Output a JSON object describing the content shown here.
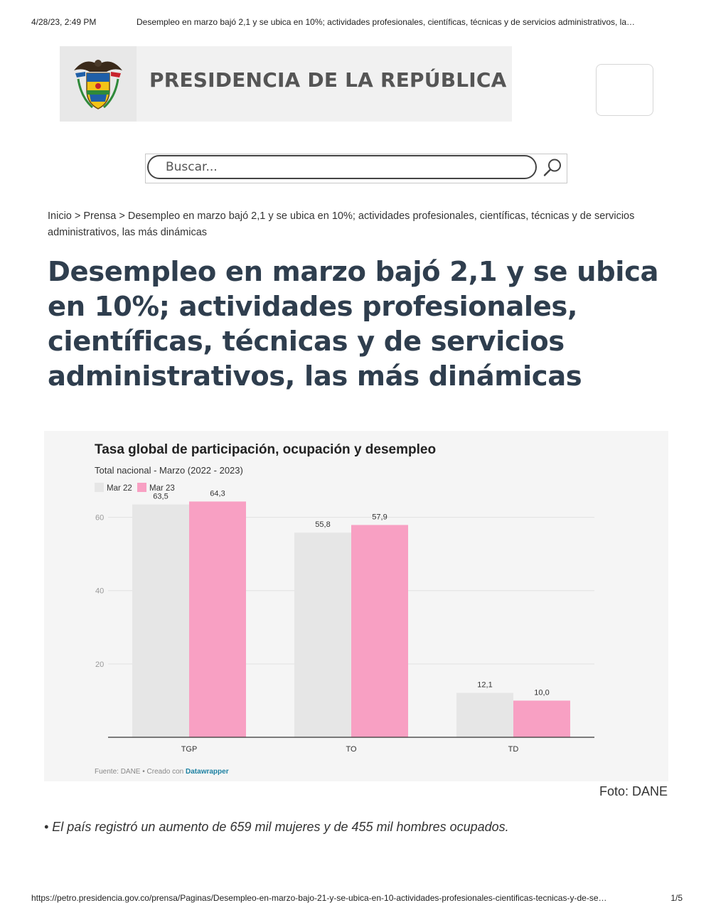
{
  "print_header": {
    "datetime": "4/28/23, 2:49 PM",
    "title": "Desempleo en marzo bajó 2,1 y se ubica en 10%; actividades profesionales, científicas, técnicas y de servicios administrativos, la…"
  },
  "header": {
    "brand": "PRESIDENCIA DE LA REPÚBLICA",
    "logo_icon": "colombia-coat-of-arms-icon",
    "menu_icon": "menu-icon"
  },
  "search": {
    "placeholder": "Buscar...",
    "icon": "search-icon"
  },
  "breadcrumb": {
    "items": [
      "Inicio",
      "Prensa",
      "Desempleo en marzo bajó 2,1 y se ubica en 10%; actividades profesionales, científicas, técnicas y de servicios administrativos, las más dinámicas"
    ],
    "separator": ">"
  },
  "article": {
    "title": "Desempleo en marzo bajó 2,1 y se ubica en 10%; actividades profesionales, científicas, técnicas y de servicios administrativos, las más dinámicas",
    "caption": "Foto: DANE",
    "bullet": "• El país registró un aumento de 659 mil mujeres y de 455 mil hombres ocupados."
  },
  "chart_data": {
    "type": "bar",
    "title": "Tasa global de participación, ocupación y desempleo",
    "subtitle": "Total nacional - Marzo (2022 - 2023)",
    "categories": [
      "TGP",
      "TO",
      "TD"
    ],
    "series": [
      {
        "name": "Mar 22",
        "values": [
          63.5,
          55.8,
          12.1
        ],
        "labels": [
          "63,5",
          "55,8",
          "12,1"
        ],
        "color": "#e6e6e6"
      },
      {
        "name": "Mar 23",
        "values": [
          64.3,
          57.9,
          10.0
        ],
        "labels": [
          "64,3",
          "57,9",
          "10,0"
        ],
        "color": "#f8a0c3"
      }
    ],
    "yticks": [
      20,
      40,
      60
    ],
    "ylim": [
      0,
      70
    ],
    "grid": true,
    "legend_position": "top-left",
    "source_prefix": "Fuente: DANE • Creado con ",
    "source_link": "Datawrapper",
    "link_color": "#1d81a2"
  },
  "print_footer": {
    "url": "https://petro.presidencia.gov.co/prensa/Paginas/Desempleo-en-marzo-bajo-21-y-se-ubica-en-10-actividades-profesionales-cientificas-tecnicas-y-de-se…",
    "page": "1/5"
  }
}
